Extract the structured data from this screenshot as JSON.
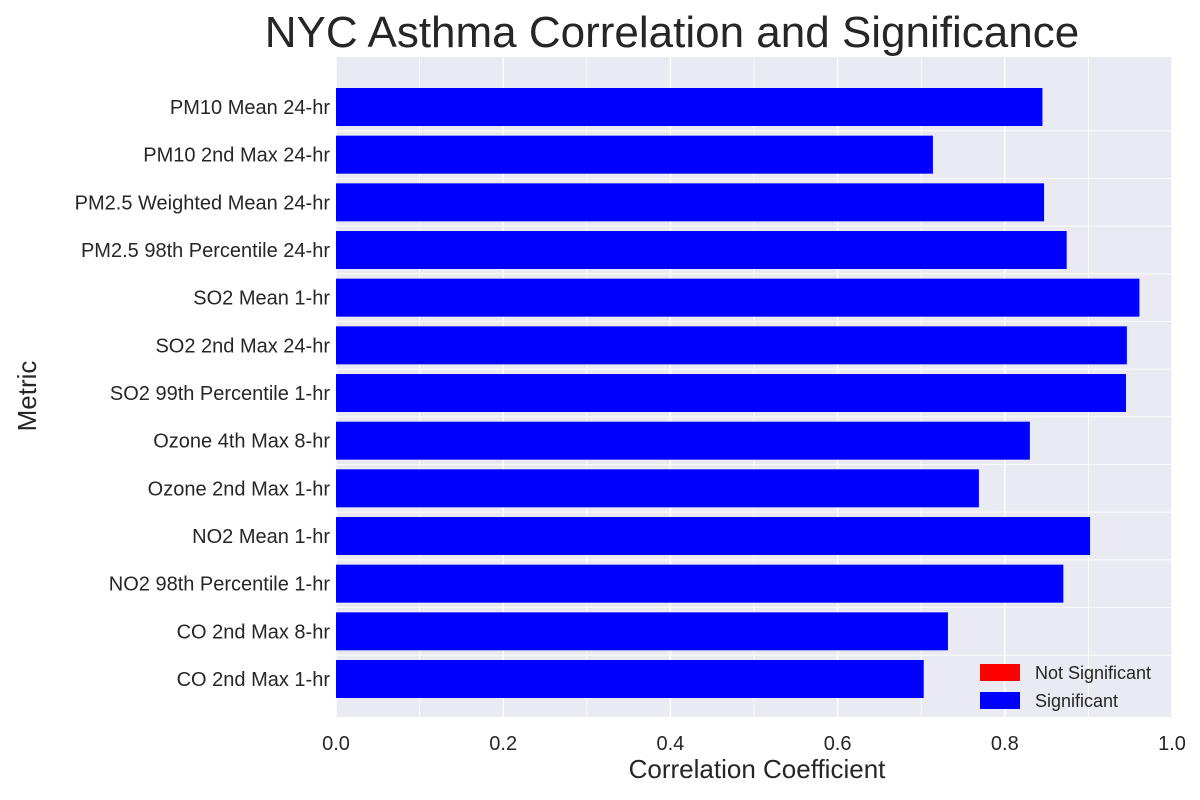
{
  "chart_data": {
    "type": "bar",
    "orientation": "horizontal",
    "title": "NYC Asthma Correlation and Significance",
    "xlabel": "Correlation Coefficient",
    "ylabel": "Metric",
    "xlim": [
      0,
      1.0
    ],
    "xticks": [
      "0.0",
      "0.2",
      "0.4",
      "0.6",
      "0.8",
      "1.0"
    ],
    "xtick_values": [
      0,
      0.2,
      0.4,
      0.6,
      0.8,
      1.0
    ],
    "grid": true,
    "legend_position": "bottom-right",
    "categories": [
      "PM10 Mean 24-hr",
      "PM10 2nd Max 24-hr",
      "PM2.5 Weighted Mean 24-hr",
      "PM2.5 98th Percentile 24-hr",
      "SO2 Mean 1-hr",
      "SO2 2nd Max 24-hr",
      "SO2 99th Percentile 1-hr",
      "Ozone 4th Max 8-hr",
      "Ozone 2nd Max 1-hr",
      "NO2 Mean 1-hr",
      "NO2 98th Percentile 1-hr",
      "CO 2nd Max 8-hr",
      "CO 2nd Max 1-hr"
    ],
    "values": [
      0.845,
      0.714,
      0.847,
      0.874,
      0.961,
      0.946,
      0.945,
      0.83,
      0.769,
      0.902,
      0.87,
      0.732,
      0.703
    ],
    "significant": [
      true,
      true,
      true,
      true,
      true,
      true,
      true,
      true,
      true,
      true,
      true,
      true,
      true
    ],
    "legend": [
      {
        "label": "Not Significant",
        "color": "#ff0000"
      },
      {
        "label": "Significant",
        "color": "#0000ff"
      }
    ],
    "colors": {
      "significant": "#0000ff",
      "not_significant": "#ff0000",
      "plot_background": "#eaeaf2",
      "grid": "#ffffff"
    }
  }
}
